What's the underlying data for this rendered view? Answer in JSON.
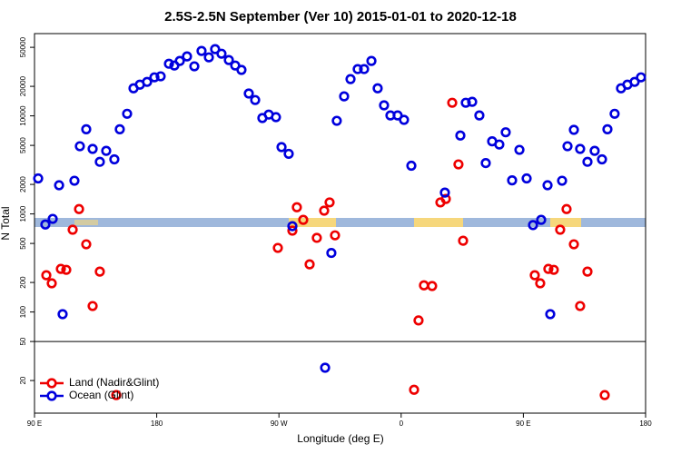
{
  "chart_data": {
    "type": "scatter",
    "title": "2.5S-2.5N September (Ver 10)   2015-01-01 to 2020-12-18",
    "x_label": "Longitude (deg E)",
    "y_label": "N Total",
    "xlim": [
      90,
      540
    ],
    "xticks": [
      {
        "value": 90,
        "label": "90 E"
      },
      180,
      {
        "value": 270,
        "label": "90 W"
      },
      {
        "value": 360,
        "label": "0"
      },
      {
        "value": 450,
        "label": "90 E"
      },
      {
        "value": 540,
        "label": "180"
      }
    ],
    "ylim": [
      9.3,
      69000
    ],
    "yticks": [
      20,
      50,
      100,
      200,
      500,
      1000,
      2000,
      5000,
      10000,
      20000,
      50000
    ],
    "log_y": true,
    "separator": 50,
    "legend": "bottom-left",
    "series": [
      {
        "name": "Land (Nadir&Glint)",
        "color": "#ee0000",
        "x": [
          98.7,
          102.7,
          109.4,
          113.4,
          118.1,
          122.8,
          128.1,
          132.8,
          138.1,
          150.2,
          269.2,
          279.9,
          283.2,
          287.9,
          292.6,
          297.9,
          303.3,
          307.3,
          311.3,
          369.5,
          372.8,
          376.8,
          382.8,
          388.9,
          392.9,
          397.6,
          402.2,
          405.6,
          458.4,
          462.4,
          468.4,
          472.4,
          477.1,
          481.8,
          487.2,
          491.8,
          497.2,
          509.9
        ],
        "values": [
          237,
          196,
          275,
          269,
          690,
          1120,
          490,
          115,
          258,
          14.2,
          450,
          675,
          1170,
          870,
          306,
          570,
          1080,
          1310,
          605,
          16.1,
          82,
          187,
          184,
          1310,
          1420,
          13600,
          3200,
          533,
          237,
          196,
          275,
          269,
          690,
          1120,
          490,
          115,
          258,
          14.2
        ]
      },
      {
        "name": "Ocean (Glint)",
        "color": "#0000dd",
        "x": [
          92.7,
          98.0,
          103.4,
          108.1,
          110.7,
          119.4,
          123.4,
          128.1,
          132.8,
          138.1,
          142.8,
          148.8,
          152.8,
          158.2,
          162.9,
          167.6,
          172.9,
          178.3,
          182.9,
          189.0,
          193.0,
          197.0,
          202.3,
          207.7,
          213.0,
          218.4,
          223.0,
          227.7,
          233.1,
          237.8,
          242.4,
          247.8,
          252.5,
          257.8,
          262.5,
          267.8,
          271.9,
          277.2,
          279.9,
          304.0,
          308.6,
          312.6,
          318.0,
          322.7,
          328.0,
          332.7,
          338.1,
          342.7,
          347.4,
          352.1,
          357.4,
          362.1,
          367.5,
          392.2,
          403.6,
          407.6,
          412.3,
          417.6,
          422.3,
          427.0,
          432.3,
          437.0,
          441.7,
          447.1,
          452.4,
          457.1,
          463.1,
          467.8,
          469.8,
          478.5,
          482.5,
          487.2,
          491.8,
          497.2,
          502.5,
          507.9,
          511.9,
          517.2,
          521.9,
          526.6,
          531.9,
          536.6
        ],
        "values": [
          2300,
          780,
          890,
          1960,
          95,
          2180,
          4900,
          7300,
          4600,
          3400,
          4400,
          3600,
          7300,
          10500,
          19100,
          20800,
          22200,
          24700,
          25300,
          34000,
          32600,
          36300,
          40400,
          32000,
          45900,
          39500,
          47900,
          43000,
          37100,
          32600,
          29400,
          16900,
          14500,
          9500,
          10300,
          9700,
          4800,
          4100,
          750,
          27,
          400,
          8900,
          15800,
          23700,
          30000,
          30000,
          36300,
          19100,
          12800,
          10100,
          10100,
          9100,
          3100,
          1650,
          6300,
          13600,
          13900,
          10100,
          3300,
          5500,
          5100,
          6800,
          2200,
          4500,
          2300,
          770,
          870,
          1960,
          95,
          2180,
          4900,
          7200,
          4600,
          3400,
          4400,
          3600,
          7300,
          10500,
          19100,
          20800,
          22200,
          24700
        ]
      }
    ]
  }
}
